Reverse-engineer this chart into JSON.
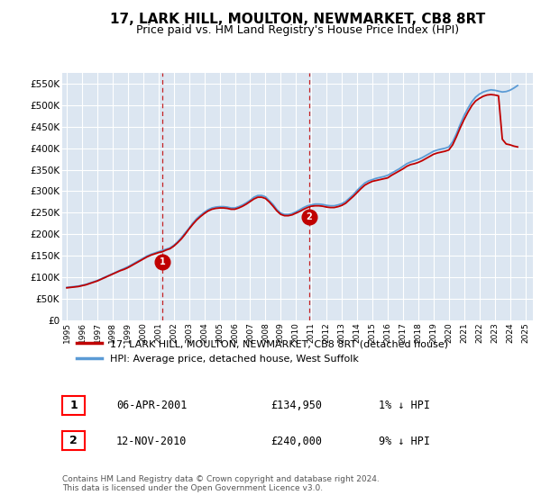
{
  "title": "17, LARK HILL, MOULTON, NEWMARKET, CB8 8RT",
  "subtitle": "Price paid vs. HM Land Registry's House Price Index (HPI)",
  "ylabel_ticks": [
    "£0",
    "£50K",
    "£100K",
    "£150K",
    "£200K",
    "£250K",
    "£300K",
    "£350K",
    "£400K",
    "£450K",
    "£500K",
    "£550K"
  ],
  "ytick_vals": [
    0,
    50000,
    100000,
    150000,
    200000,
    250000,
    300000,
    350000,
    400000,
    450000,
    500000,
    550000
  ],
  "ylim": [
    0,
    575000
  ],
  "xlim_start": 1994.7,
  "xlim_end": 2025.5,
  "xtick_years": [
    1995,
    1996,
    1997,
    1998,
    1999,
    2000,
    2001,
    2002,
    2003,
    2004,
    2005,
    2006,
    2007,
    2008,
    2009,
    2010,
    2011,
    2012,
    2013,
    2014,
    2015,
    2016,
    2017,
    2018,
    2019,
    2020,
    2021,
    2022,
    2023,
    2024,
    2025
  ],
  "hpi_color": "#5b9bd5",
  "price_color": "#c00000",
  "marker1_x": 2001.27,
  "marker1_y": 134950,
  "marker2_x": 2010.87,
  "marker2_y": 240000,
  "vline1_x": 2001.27,
  "vline2_x": 2010.87,
  "legend_line1": "17, LARK HILL, MOULTON, NEWMARKET, CB8 8RT (detached house)",
  "legend_line2": "HPI: Average price, detached house, West Suffolk",
  "table_rows": [
    {
      "num": "1",
      "date": "06-APR-2001",
      "price": "£134,950",
      "hpi": "1% ↓ HPI"
    },
    {
      "num": "2",
      "date": "12-NOV-2010",
      "price": "£240,000",
      "hpi": "9% ↓ HPI"
    }
  ],
  "footnote": "Contains HM Land Registry data © Crown copyright and database right 2024.\nThis data is licensed under the Open Government Licence v3.0.",
  "plot_bg_color": "#dce6f1",
  "fig_bg_color": "#ffffff",
  "grid_color": "#ffffff",
  "hpi_data_x": [
    1995.0,
    1995.25,
    1995.5,
    1995.75,
    1996.0,
    1996.25,
    1996.5,
    1996.75,
    1997.0,
    1997.25,
    1997.5,
    1997.75,
    1998.0,
    1998.25,
    1998.5,
    1998.75,
    1999.0,
    1999.25,
    1999.5,
    1999.75,
    2000.0,
    2000.25,
    2000.5,
    2000.75,
    2001.0,
    2001.25,
    2001.5,
    2001.75,
    2002.0,
    2002.25,
    2002.5,
    2002.75,
    2003.0,
    2003.25,
    2003.5,
    2003.75,
    2004.0,
    2004.25,
    2004.5,
    2004.75,
    2005.0,
    2005.25,
    2005.5,
    2005.75,
    2006.0,
    2006.25,
    2006.5,
    2006.75,
    2007.0,
    2007.25,
    2007.5,
    2007.75,
    2008.0,
    2008.25,
    2008.5,
    2008.75,
    2009.0,
    2009.25,
    2009.5,
    2009.75,
    2010.0,
    2010.25,
    2010.5,
    2010.75,
    2011.0,
    2011.25,
    2011.5,
    2011.75,
    2012.0,
    2012.25,
    2012.5,
    2012.75,
    2013.0,
    2013.25,
    2013.5,
    2013.75,
    2014.0,
    2014.25,
    2014.5,
    2014.75,
    2015.0,
    2015.25,
    2015.5,
    2015.75,
    2016.0,
    2016.25,
    2016.5,
    2016.75,
    2017.0,
    2017.25,
    2017.5,
    2017.75,
    2018.0,
    2018.25,
    2018.5,
    2018.75,
    2019.0,
    2019.25,
    2019.5,
    2019.75,
    2020.0,
    2020.25,
    2020.5,
    2020.75,
    2021.0,
    2021.25,
    2021.5,
    2021.75,
    2022.0,
    2022.25,
    2022.5,
    2022.75,
    2023.0,
    2023.25,
    2023.5,
    2023.75,
    2024.0,
    2024.25,
    2024.5
  ],
  "hpi_data_y": [
    76000,
    77000,
    78000,
    79000,
    81000,
    83000,
    86000,
    89000,
    92000,
    96000,
    100000,
    104000,
    108000,
    112000,
    116000,
    120000,
    124000,
    129000,
    134000,
    139000,
    144000,
    149000,
    153000,
    156000,
    159000,
    162000,
    165000,
    168000,
    174000,
    182000,
    192000,
    203000,
    214000,
    226000,
    236000,
    244000,
    251000,
    257000,
    261000,
    263000,
    264000,
    264000,
    263000,
    261000,
    261000,
    264000,
    268000,
    273000,
    279000,
    286000,
    290000,
    290000,
    287000,
    278000,
    269000,
    257000,
    249000,
    246000,
    246000,
    248000,
    252000,
    257000,
    262000,
    266000,
    268000,
    270000,
    270000,
    269000,
    267000,
    266000,
    266000,
    268000,
    271000,
    276000,
    284000,
    292000,
    302000,
    311000,
    319000,
    324000,
    327000,
    330000,
    332000,
    334000,
    337000,
    342000,
    347000,
    352000,
    358000,
    364000,
    368000,
    371000,
    374000,
    378000,
    383000,
    388000,
    393000,
    396000,
    398000,
    400000,
    403000,
    415000,
    434000,
    456000,
    476000,
    493000,
    508000,
    519000,
    526000,
    531000,
    534000,
    536000,
    535000,
    533000,
    531000,
    532000,
    535000,
    540000,
    546000
  ],
  "price_data_x": [
    1995.0,
    1995.25,
    1995.5,
    1995.75,
    1996.0,
    1996.25,
    1996.5,
    1996.75,
    1997.0,
    1997.25,
    1997.5,
    1997.75,
    1998.0,
    1998.25,
    1998.5,
    1998.75,
    1999.0,
    1999.25,
    1999.5,
    1999.75,
    2000.0,
    2000.25,
    2000.5,
    2000.75,
    2001.0,
    2001.25,
    2001.5,
    2001.75,
    2002.0,
    2002.25,
    2002.5,
    2002.75,
    2003.0,
    2003.25,
    2003.5,
    2003.75,
    2004.0,
    2004.25,
    2004.5,
    2004.75,
    2005.0,
    2005.25,
    2005.5,
    2005.75,
    2006.0,
    2006.25,
    2006.5,
    2006.75,
    2007.0,
    2007.25,
    2007.5,
    2007.75,
    2008.0,
    2008.25,
    2008.5,
    2008.75,
    2009.0,
    2009.25,
    2009.5,
    2009.75,
    2010.0,
    2010.25,
    2010.5,
    2010.75,
    2011.0,
    2011.25,
    2011.5,
    2011.75,
    2012.0,
    2012.25,
    2012.5,
    2012.75,
    2013.0,
    2013.25,
    2013.5,
    2013.75,
    2014.0,
    2014.25,
    2014.5,
    2014.75,
    2015.0,
    2015.25,
    2015.5,
    2015.75,
    2016.0,
    2016.25,
    2016.5,
    2016.75,
    2017.0,
    2017.25,
    2017.5,
    2017.75,
    2018.0,
    2018.25,
    2018.5,
    2018.75,
    2019.0,
    2019.25,
    2019.5,
    2019.75,
    2020.0,
    2020.25,
    2020.5,
    2020.75,
    2021.0,
    2021.25,
    2021.5,
    2021.75,
    2022.0,
    2022.25,
    2022.5,
    2022.75,
    2023.0,
    2023.25,
    2023.5,
    2023.75,
    2024.0,
    2024.25,
    2024.5
  ],
  "price_data_y": [
    75000,
    76000,
    77000,
    78000,
    80000,
    82000,
    85000,
    88000,
    91000,
    95000,
    99000,
    103000,
    107000,
    111000,
    115000,
    118000,
    122000,
    127000,
    132000,
    137000,
    142000,
    147000,
    151000,
    154000,
    157000,
    159000,
    163000,
    166000,
    172000,
    180000,
    189000,
    200000,
    212000,
    223000,
    233000,
    241000,
    248000,
    254000,
    258000,
    260000,
    261000,
    261000,
    260000,
    258000,
    258000,
    261000,
    265000,
    270000,
    276000,
    282000,
    286000,
    286000,
    283000,
    275000,
    265000,
    254000,
    246000,
    243000,
    243000,
    245000,
    249000,
    253000,
    258000,
    262000,
    265000,
    266000,
    266000,
    265000,
    263000,
    262000,
    262000,
    264000,
    267000,
    272000,
    280000,
    288000,
    297000,
    306000,
    314000,
    319000,
    323000,
    325000,
    327000,
    329000,
    331000,
    337000,
    342000,
    347000,
    352000,
    358000,
    362000,
    364000,
    367000,
    371000,
    376000,
    381000,
    386000,
    389000,
    391000,
    393000,
    396000,
    408000,
    427000,
    448000,
    467000,
    484000,
    499000,
    510000,
    516000,
    521000,
    524000,
    525000,
    524000,
    522000,
    421000,
    410000,
    408000,
    405000,
    403000
  ]
}
